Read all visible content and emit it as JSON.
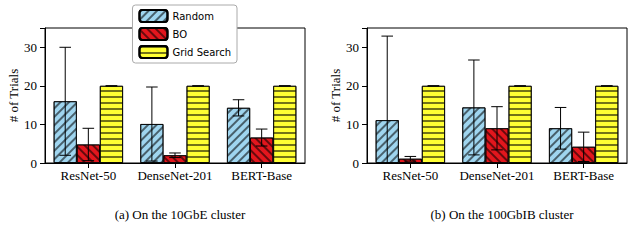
{
  "chart_data": [
    {
      "type": "bar",
      "title": "(a) On the 10GbE cluster",
      "ylabel": "# of Trials",
      "categories": [
        "ResNet-50",
        "DenseNet-201",
        "BERT-Base"
      ],
      "series": [
        {
          "name": "Random",
          "color": "#9fd5ef",
          "values": [
            16,
            10.1,
            14.3
          ],
          "errors": [
            14,
            9.6,
            2.1
          ]
        },
        {
          "name": "BO",
          "color": "#e3161d",
          "values": [
            4.8,
            2.0,
            6.6
          ],
          "errors": [
            4.2,
            0.6,
            2.2
          ]
        },
        {
          "name": "Grid Search",
          "color": "#ffff33",
          "values": [
            20,
            20,
            20
          ],
          "errors": [
            0,
            0,
            0
          ]
        }
      ],
      "ylim": [
        0,
        35
      ],
      "yticks": [
        0,
        10,
        20,
        30
      ],
      "legend": "upper right"
    },
    {
      "type": "bar",
      "title": "(b) On the 100GbIB cluster",
      "ylabel": "# of Trials",
      "categories": [
        "ResNet-50",
        "DenseNet-201",
        "BERT-Base"
      ],
      "series": [
        {
          "name": "Random",
          "color": "#9fd5ef",
          "values": [
            11.1,
            14.4,
            9.0
          ],
          "errors": [
            21.8,
            12.3,
            5.4
          ]
        },
        {
          "name": "BO",
          "color": "#e3161d",
          "values": [
            1.1,
            9.0,
            4.2
          ],
          "errors": [
            0.6,
            5.6,
            3.8
          ]
        },
        {
          "name": "Grid Search",
          "color": "#ffff33",
          "values": [
            20,
            20,
            20
          ],
          "errors": [
            0,
            0,
            0
          ]
        }
      ],
      "ylim": [
        0,
        35
      ],
      "yticks": [
        0,
        10,
        20,
        30
      ]
    }
  ]
}
